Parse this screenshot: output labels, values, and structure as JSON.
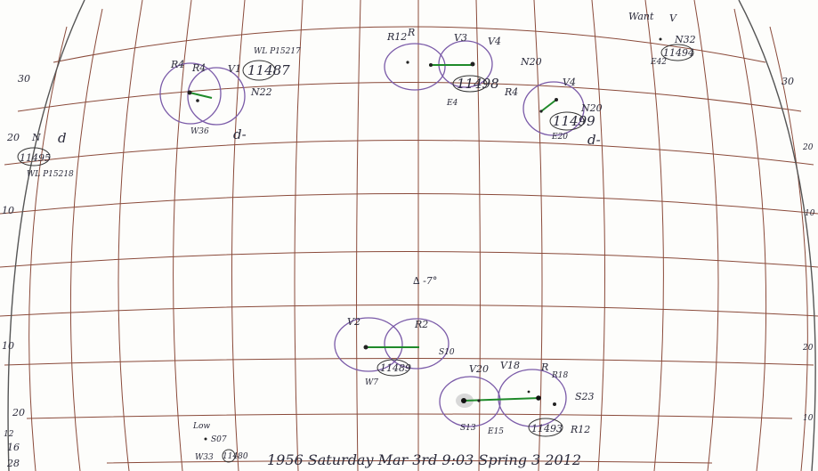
{
  "sheet": {
    "colors": {
      "grid": "#8a4a3a",
      "ring": "#7a5aa8",
      "link": "#1f8a2a",
      "ink": "#2a2a3a"
    },
    "center_note": "∆ -7°",
    "footer_note": "1956 Saturday Mar 3rd 9:03 Spring 3 2012"
  },
  "margin_labels": {
    "left": [
      "30",
      "20",
      "10",
      "10",
      "20",
      "12",
      "16",
      "28"
    ],
    "right": [
      "30",
      "20",
      "10",
      "20",
      "10"
    ]
  },
  "regions": [
    {
      "id": "11487",
      "number": "11487",
      "labels": [
        "R4",
        "R4",
        "V1",
        "N22",
        "W36",
        "d-"
      ],
      "note": "WL P15217"
    },
    {
      "id": "11498",
      "number": "11498",
      "labels": [
        "R12",
        "R",
        "V3",
        "V4",
        "N20",
        "E4"
      ]
    },
    {
      "id": "11499",
      "number": "11499",
      "labels": [
        "R4",
        "V4",
        "N20",
        "E20",
        "d-"
      ]
    },
    {
      "id": "11494",
      "number": "11494",
      "labels": [
        "Want",
        "V",
        "N32",
        "E42"
      ]
    },
    {
      "id": "11495",
      "number": "11495",
      "labels": [
        "N",
        "d"
      ],
      "note": "WL P15218"
    },
    {
      "id": "11489",
      "number": "11489",
      "labels": [
        "V2",
        "R2",
        "S10",
        "W7"
      ]
    },
    {
      "id": "11493",
      "number": "11493",
      "labels": [
        "V20",
        "V18",
        "R",
        "R18",
        "S23",
        "R12",
        "S13",
        "E15"
      ]
    },
    {
      "id": "11480",
      "number": "11480",
      "labels": [
        "Low",
        "S07",
        "W33"
      ]
    }
  ]
}
